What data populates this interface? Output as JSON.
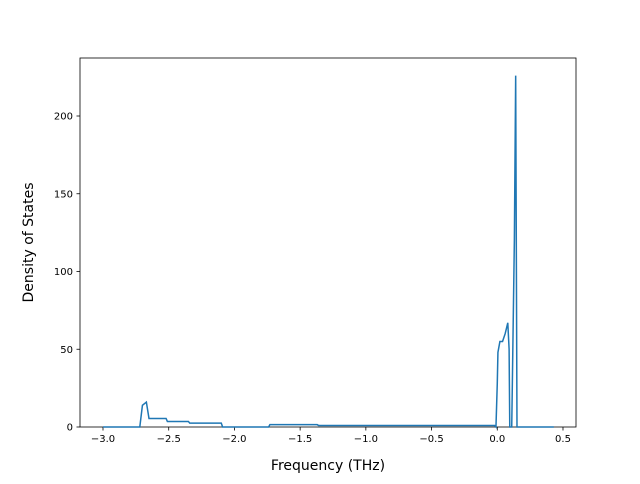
{
  "chart_data": {
    "type": "line",
    "xlabel": "Frequency (THz)",
    "ylabel": "Density of States",
    "x": [
      -3.0,
      -2.72,
      -2.7,
      -2.67,
      -2.65,
      -2.52,
      -2.51,
      -2.35,
      -2.34,
      -2.1,
      -2.09,
      -1.74,
      -1.73,
      -1.37,
      -1.36,
      -0.02,
      -0.01,
      0.0,
      0.005,
      0.02,
      0.04,
      0.06,
      0.08,
      0.09,
      0.095,
      0.11,
      0.13,
      0.14,
      0.15,
      0.43
    ],
    "series": [
      {
        "color": "#1f77b4",
        "values": [
          0,
          0,
          14,
          16,
          5.5,
          5.5,
          3.5,
          3.5,
          2.5,
          2.5,
          0,
          0,
          1.5,
          1.5,
          1,
          1,
          0,
          28,
          48,
          55,
          55,
          60,
          67,
          50,
          0,
          0,
          120,
          226,
          0,
          0
        ]
      }
    ],
    "xlim": [
      -3.175,
      0.599
    ],
    "ylim": [
      0,
      237.3
    ],
    "xticks": [
      {
        "value": -3.0,
        "label": "−3.0"
      },
      {
        "value": -2.5,
        "label": "−2.5"
      },
      {
        "value": -2.0,
        "label": "−2.0"
      },
      {
        "value": -1.5,
        "label": "−1.5"
      },
      {
        "value": -1.0,
        "label": "−1.0"
      },
      {
        "value": -0.5,
        "label": "−0.5"
      },
      {
        "value": 0.0,
        "label": "0.0"
      },
      0.5
    ],
    "yticks": [
      0,
      50,
      100,
      150,
      200
    ]
  }
}
